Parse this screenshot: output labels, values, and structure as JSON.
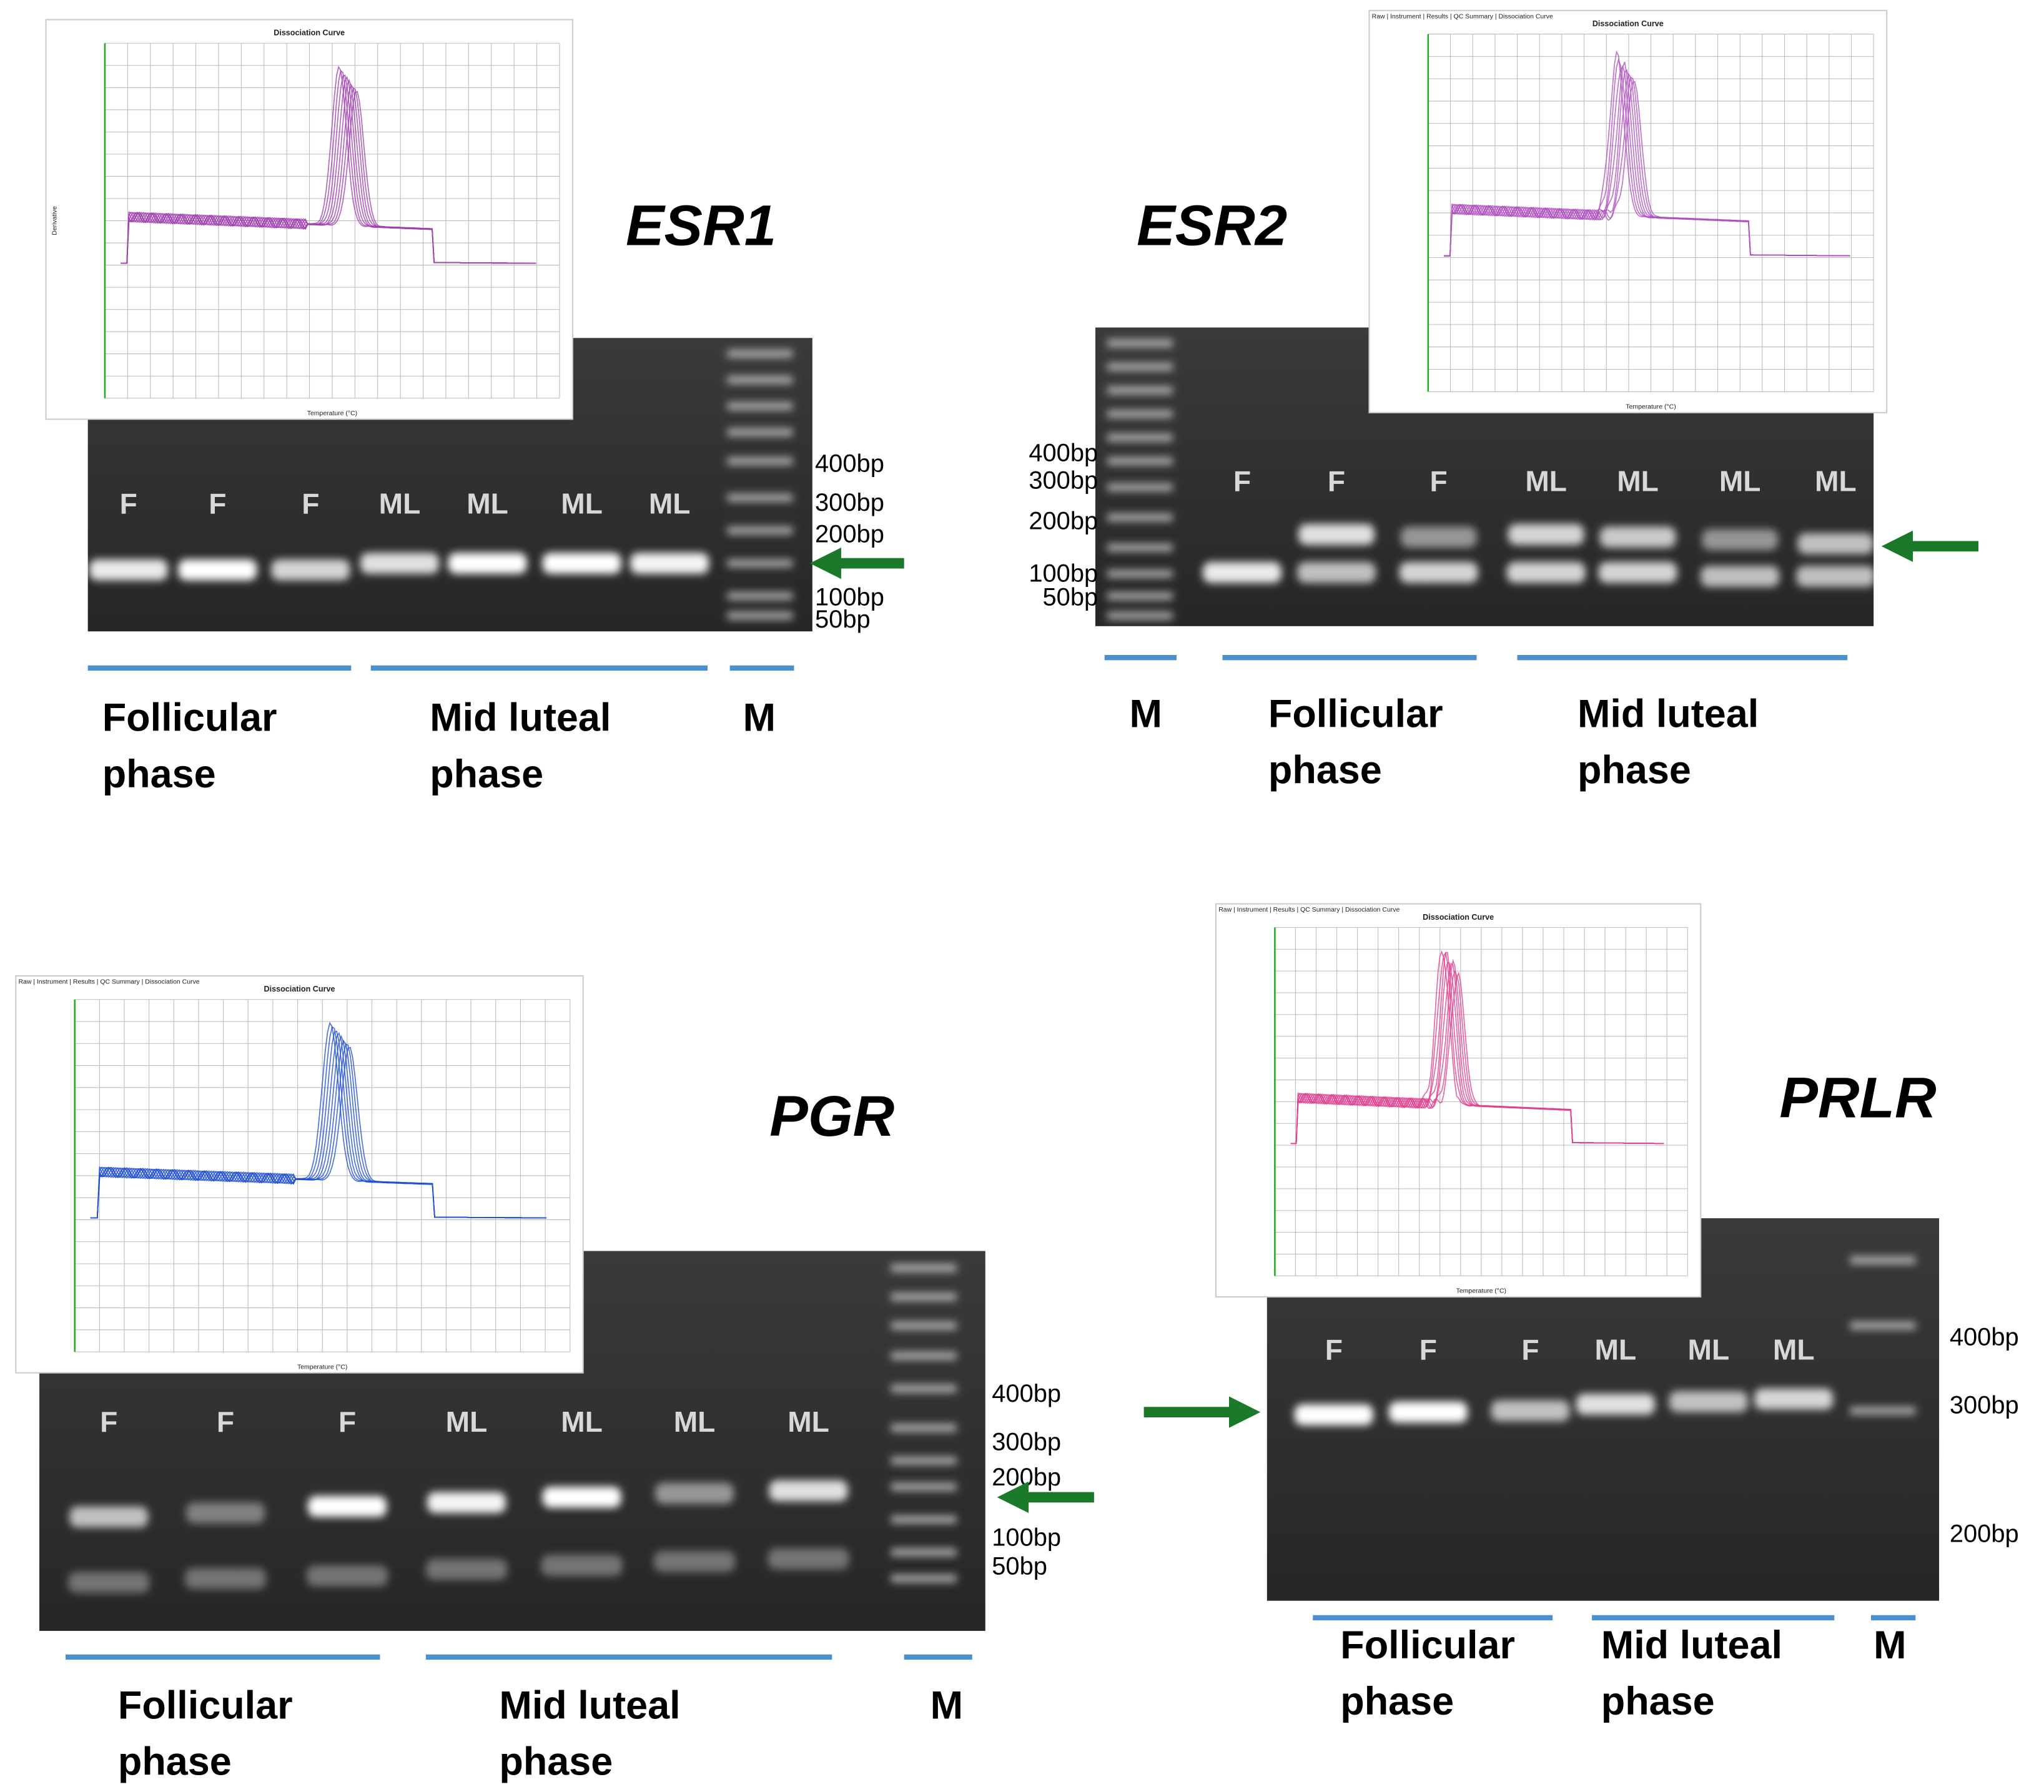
{
  "panels": [
    {
      "gene": "ESR1",
      "curve_title": "Dissociation Curve",
      "x_axis": "Temperature (°C)",
      "y_axis": "Derivative",
      "lanes": [
        "F",
        "F",
        "F",
        "ML",
        "ML",
        "ML",
        "ML"
      ],
      "markers": [
        "400bp",
        "300bp",
        "200bp",
        "100bp",
        "50bp"
      ],
      "groups": [
        {
          "lines": [
            "Follicular",
            "phase"
          ]
        },
        {
          "lines": [
            "Mid luteal",
            "phase"
          ]
        },
        {
          "lines": [
            "M"
          ]
        }
      ]
    },
    {
      "gene": "ESR2",
      "curve_title": "Dissociation Curve",
      "x_axis": "Temperature (°C)",
      "tabs": "Raw | Instrument | Results | QC Summary | Dissociation Curve",
      "lanes": [
        "F",
        "F",
        "F",
        "ML",
        "ML",
        "ML",
        "ML"
      ],
      "markers": [
        "400bp",
        "300bp",
        "200bp",
        "100bp",
        "50bp"
      ],
      "groups": [
        {
          "lines": [
            "M"
          ]
        },
        {
          "lines": [
            "Follicular",
            "phase"
          ]
        },
        {
          "lines": [
            "Mid luteal",
            "phase"
          ]
        }
      ]
    },
    {
      "gene": "PGR",
      "curve_title": "Dissociation Curve",
      "x_axis": "Temperature (°C)",
      "tabs": "Raw | Instrument | Results | QC Summary | Dissociation Curve",
      "lanes": [
        "F",
        "F",
        "F",
        "ML",
        "ML",
        "ML",
        "ML"
      ],
      "markers": [
        "400bp",
        "300bp",
        "200bp",
        "100bp",
        "50bp"
      ],
      "groups": [
        {
          "lines": [
            "Follicular",
            "phase"
          ]
        },
        {
          "lines": [
            "Mid luteal",
            "phase"
          ]
        },
        {
          "lines": [
            "M"
          ]
        }
      ]
    },
    {
      "gene": "PRLR",
      "curve_title": "Dissociation Curve",
      "x_axis": "Temperature (°C)",
      "tabs": "Raw | Instrument | Results | QC Summary | Dissociation Curve",
      "lanes": [
        "F",
        "F",
        "F",
        "ML",
        "ML",
        "ML"
      ],
      "markers": [
        "400bp",
        "300bp",
        "200bp"
      ],
      "groups": [
        {
          "lines": [
            "Follicular",
            "phase"
          ]
        },
        {
          "lines": [
            "Mid luteal",
            "phase"
          ]
        },
        {
          "lines": [
            "M"
          ]
        }
      ]
    }
  ]
}
